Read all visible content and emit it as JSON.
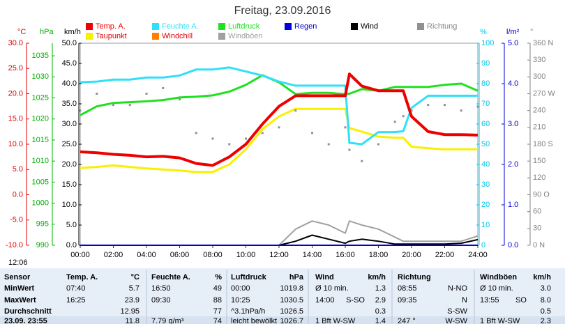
{
  "chart_data": {
    "type": "line",
    "title": "Freitag, 23.09.2016",
    "time_label": "12:06",
    "xlim": [
      0,
      24
    ],
    "xticks": [
      {
        "value": 0,
        "label": "00:00"
      },
      {
        "value": 2,
        "label": "02:00"
      },
      {
        "value": 4,
        "label": "04:00"
      },
      {
        "value": 6,
        "label": "06:00"
      },
      {
        "value": 8,
        "label": "08:00"
      },
      {
        "value": 10,
        "label": "10:00"
      },
      {
        "value": 12,
        "label": "12:00"
      },
      {
        "value": 14,
        "label": "14:00"
      },
      {
        "value": 16,
        "label": "16:00"
      },
      {
        "value": 18,
        "label": "18:00"
      },
      {
        "value": 20,
        "label": "20:00"
      },
      {
        "value": 22,
        "label": "22:00"
      },
      {
        "value": 24,
        "label": "24:00"
      }
    ],
    "axes": [
      {
        "unit": "°C",
        "color": "#e00000",
        "lim": [
          -10,
          30
        ],
        "ticks": [
          {
            "value": -10,
            "label": "-10.0"
          },
          {
            "value": -5,
            "label": "-5.0"
          },
          {
            "value": 0,
            "label": "0.0"
          },
          {
            "value": 5,
            "label": "5.0"
          },
          {
            "value": 10,
            "label": "10.0"
          },
          {
            "value": 15,
            "label": "15.0"
          },
          {
            "value": 20,
            "label": "20.0"
          },
          {
            "value": 25,
            "label": "25.0"
          },
          {
            "value": 30,
            "label": "30.0"
          }
        ]
      },
      {
        "unit": "hPa",
        "color": "#00b000",
        "lim": [
          990,
          1038
        ],
        "ticks": [
          990,
          995,
          1000,
          1005,
          1010,
          1015,
          1020,
          1025,
          1030,
          1035
        ]
      },
      {
        "unit": "km/h",
        "color": "#000000",
        "lim": [
          0,
          50
        ],
        "ticks": [
          {
            "value": 0,
            "label": "0.0"
          },
          {
            "value": 5,
            "label": "5.0"
          },
          {
            "value": 10,
            "label": "10.0"
          },
          {
            "value": 15,
            "label": "15.0"
          },
          {
            "value": 20,
            "label": "20.0"
          },
          {
            "value": 25,
            "label": "25.0"
          },
          {
            "value": 30,
            "label": "30.0"
          },
          {
            "value": 35,
            "label": "35.0"
          },
          {
            "value": 40,
            "label": "40.0"
          },
          {
            "value": 45,
            "label": "45.0"
          },
          {
            "value": 50,
            "label": "50.0"
          }
        ]
      },
      {
        "unit": "%",
        "color": "#00c8e8",
        "lim": [
          0,
          100
        ],
        "ticks": [
          0,
          10,
          20,
          30,
          40,
          50,
          60,
          70,
          80,
          90,
          100
        ]
      },
      {
        "unit": "l/m²",
        "color": "#0000d0",
        "lim": [
          0,
          5
        ],
        "ticks": [
          {
            "value": 0,
            "label": "0.0"
          },
          {
            "value": 1,
            "label": "1.0"
          },
          {
            "value": 2,
            "label": "2.0"
          },
          {
            "value": 3,
            "label": "3.0"
          },
          {
            "value": 4,
            "label": "4.0"
          },
          {
            "value": 5,
            "label": "5.0"
          }
        ]
      },
      {
        "unit": "°",
        "color": "#808080",
        "lim": [
          0,
          360
        ],
        "ticks": [
          {
            "value": 0,
            "label": "0 N"
          },
          30,
          60,
          {
            "value": 90,
            "label": "90 O"
          },
          120,
          150,
          {
            "value": 180,
            "label": "180 S"
          },
          210,
          240,
          {
            "value": 270,
            "label": "270 W"
          },
          300,
          330,
          {
            "value": 360,
            "label": "360 N"
          }
        ]
      }
    ],
    "x": [
      0,
      1,
      2,
      3,
      4,
      5,
      6,
      7,
      8,
      9,
      10,
      11,
      12,
      13,
      14,
      15,
      16,
      16.25,
      17,
      18,
      19,
      19.5,
      20,
      21,
      22,
      23,
      24
    ],
    "series": [
      {
        "name": "Temp. A.",
        "color": "#ee0000",
        "axis": 0,
        "values": [
          8.5,
          8.3,
          8.0,
          7.8,
          7.5,
          7.6,
          7.3,
          6.2,
          5.8,
          7.5,
          10.0,
          14.0,
          17.5,
          19.6,
          19.6,
          19.6,
          19.6,
          23.9,
          21.5,
          20.6,
          20.6,
          20.6,
          15.5,
          12.5,
          11.9,
          11.9,
          11.8
        ]
      },
      {
        "name": "Feuchte A.",
        "color": "#30e0f8",
        "axis": 3,
        "values": [
          80.7,
          81,
          82,
          82,
          83,
          83,
          84,
          87,
          87,
          88,
          86,
          84,
          81,
          79,
          79,
          79,
          79,
          50.7,
          50,
          56,
          56,
          56.5,
          68,
          74,
          74,
          74,
          74
        ]
      },
      {
        "name": "Luftdruck",
        "color": "#20e020",
        "axis": 1,
        "values": [
          1020.9,
          1023.0,
          1023.8,
          1024.0,
          1024.2,
          1024.5,
          1025.1,
          1025.3,
          1025.6,
          1026.5,
          1028.1,
          1030.4,
          1028.7,
          1025.9,
          1026.2,
          1026.2,
          1025.9,
          1026.0,
          1027.1,
          1026.7,
          1027.6,
          1027.6,
          1027.6,
          1027.6,
          1028.1,
          1028.4,
          1026.7
        ]
      },
      {
        "name": "Regen",
        "color": "#0000e0",
        "axis": 4,
        "values": [
          0,
          0,
          0,
          0,
          0,
          0,
          0,
          0,
          0,
          0,
          0,
          0,
          0,
          0,
          0,
          0,
          0,
          0,
          0,
          0,
          0,
          0,
          0,
          0,
          0,
          0,
          0
        ]
      },
      {
        "name": "Wind",
        "color": "#000000",
        "axis": 2,
        "values": [
          0,
          0,
          0,
          0,
          0,
          0,
          0,
          0,
          0,
          0,
          0,
          0,
          0,
          1,
          2.5,
          1.5,
          0.5,
          1,
          1.5,
          1,
          0.3,
          0.3,
          0.3,
          0.3,
          0.3,
          0.5,
          1.4
        ]
      },
      {
        "name": "Richtung",
        "color": "#909090",
        "axis": 5,
        "style": "dots",
        "values": [
          240,
          270,
          250,
          250,
          270,
          280,
          260,
          200,
          190,
          180,
          190,
          200,
          210,
          240,
          200,
          180,
          210,
          170,
          150,
          180,
          220,
          230,
          240,
          250,
          250,
          240,
          247
        ]
      },
      {
        "name": "Taupunkt",
        "color": "#f8f000",
        "axis": 0,
        "values": [
          5.3,
          5.5,
          5.8,
          5.5,
          5.2,
          5.0,
          4.8,
          4.5,
          4.5,
          6.0,
          9.0,
          13.0,
          15.5,
          17.0,
          17.0,
          17.0,
          17.0,
          13.2,
          12.5,
          11.5,
          11.3,
          11.3,
          9.5,
          9.2,
          9.0,
          9.0,
          9.0
        ]
      },
      {
        "name": "Windchill",
        "color": "#ff8000",
        "axis": 0,
        "values": [
          8.5,
          8.3,
          8.0,
          7.8,
          7.5,
          7.6,
          7.3,
          6.2,
          5.8,
          7.5,
          10.0,
          14.0,
          17.5,
          19.6,
          19.6,
          19.6,
          19.6,
          23.9,
          21.5,
          20.6,
          20.6,
          20.6,
          15.5,
          12.5,
          11.9,
          11.9,
          11.8
        ]
      },
      {
        "name": "Windböen",
        "color": "#a0a0a0",
        "axis": 2,
        "values": [
          0,
          0,
          0,
          0,
          0,
          0,
          0,
          0,
          0,
          0,
          0,
          0,
          0,
          4,
          6,
          5,
          3,
          6,
          5,
          4,
          2,
          1,
          1,
          1,
          1,
          1,
          2.3
        ]
      }
    ]
  },
  "table": {
    "header": [
      "Sensor",
      "Temp. A.",
      "°C",
      "Feuchte A.",
      "%",
      "Luftdruck",
      "hPa",
      "Wind",
      null,
      "km/h",
      "Richtung",
      null,
      "Windböen",
      null,
      "km/h"
    ],
    "rows": [
      [
        "MinWert",
        "07:40",
        "5.7",
        "16:50",
        "49",
        "00:00",
        "1019.8",
        "Ø 10 min.",
        null,
        "1.3",
        "08:55",
        "N-NO",
        "Ø 10 min.",
        null,
        "3.0"
      ],
      [
        "MaxWert",
        "16:25",
        "23.9",
        "09:30",
        "88",
        "10:25",
        "1030.5",
        "14:00",
        "S-SO",
        "2.9",
        "09:35",
        "N",
        "13:55",
        "SO",
        "8.0"
      ],
      [
        "Durchschnitt",
        null,
        "12.95",
        null,
        "77",
        "^3.1hPa/h",
        "1026.5",
        null,
        null,
        "0.3",
        null,
        "S-SW",
        null,
        null,
        "0.5"
      ],
      [
        "23.09. 23:55",
        null,
        "11.8",
        "7.79 g/m³",
        "74",
        "leicht bewölkt",
        "1026.7",
        "1 Bft W-SW",
        null,
        "1.4",
        "247 °",
        "W-SW",
        "1 Bft W-SW",
        null,
        "2.3"
      ]
    ]
  }
}
